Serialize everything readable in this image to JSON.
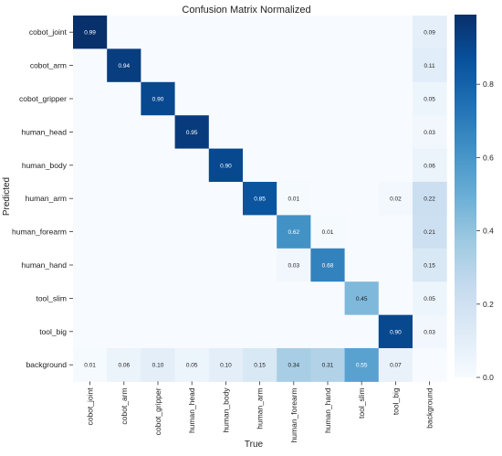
{
  "chart_data": {
    "type": "heatmap",
    "title": "Confusion Matrix Normalized",
    "xlabel": "True",
    "ylabel": "Predicted",
    "x_categories": [
      "cobot_joint",
      "cobot_arm",
      "cobot_gripper",
      "human_head",
      "human_body",
      "human_arm",
      "human_forearm",
      "human_hand",
      "tool_slim",
      "tool_big",
      "background"
    ],
    "y_categories": [
      "cobot_joint",
      "cobot_arm",
      "cobot_gripper",
      "human_head",
      "human_body",
      "human_arm",
      "human_forearm",
      "human_hand",
      "tool_slim",
      "tool_big",
      "background"
    ],
    "values": [
      [
        0.99,
        null,
        null,
        null,
        null,
        null,
        null,
        null,
        null,
        null,
        0.09
      ],
      [
        null,
        0.94,
        null,
        null,
        null,
        null,
        null,
        null,
        null,
        null,
        0.11
      ],
      [
        null,
        null,
        0.9,
        null,
        null,
        null,
        null,
        null,
        null,
        null,
        0.05
      ],
      [
        null,
        null,
        null,
        0.95,
        null,
        null,
        null,
        null,
        null,
        null,
        0.03
      ],
      [
        null,
        null,
        null,
        null,
        0.9,
        null,
        null,
        null,
        null,
        null,
        0.06
      ],
      [
        null,
        null,
        null,
        null,
        null,
        0.85,
        0.01,
        null,
        null,
        0.02,
        0.22
      ],
      [
        null,
        null,
        null,
        null,
        null,
        null,
        0.62,
        0.01,
        null,
        null,
        0.21
      ],
      [
        null,
        null,
        null,
        null,
        null,
        null,
        0.03,
        0.68,
        null,
        null,
        0.15
      ],
      [
        null,
        null,
        null,
        null,
        null,
        null,
        null,
        null,
        0.45,
        null,
        0.05
      ],
      [
        null,
        null,
        null,
        null,
        null,
        null,
        null,
        null,
        null,
        0.9,
        0.03
      ],
      [
        0.01,
        0.06,
        0.1,
        0.05,
        0.1,
        0.15,
        0.34,
        0.31,
        0.55,
        0.07,
        null
      ]
    ],
    "colormap": "Blues",
    "colorbar": {
      "range": [
        0,
        1
      ],
      "ticks": [
        "0.0",
        "0.2",
        "0.4",
        "0.6",
        "0.8"
      ],
      "tick_values": [
        0,
        0.2,
        0.4,
        0.6,
        0.8
      ]
    }
  }
}
